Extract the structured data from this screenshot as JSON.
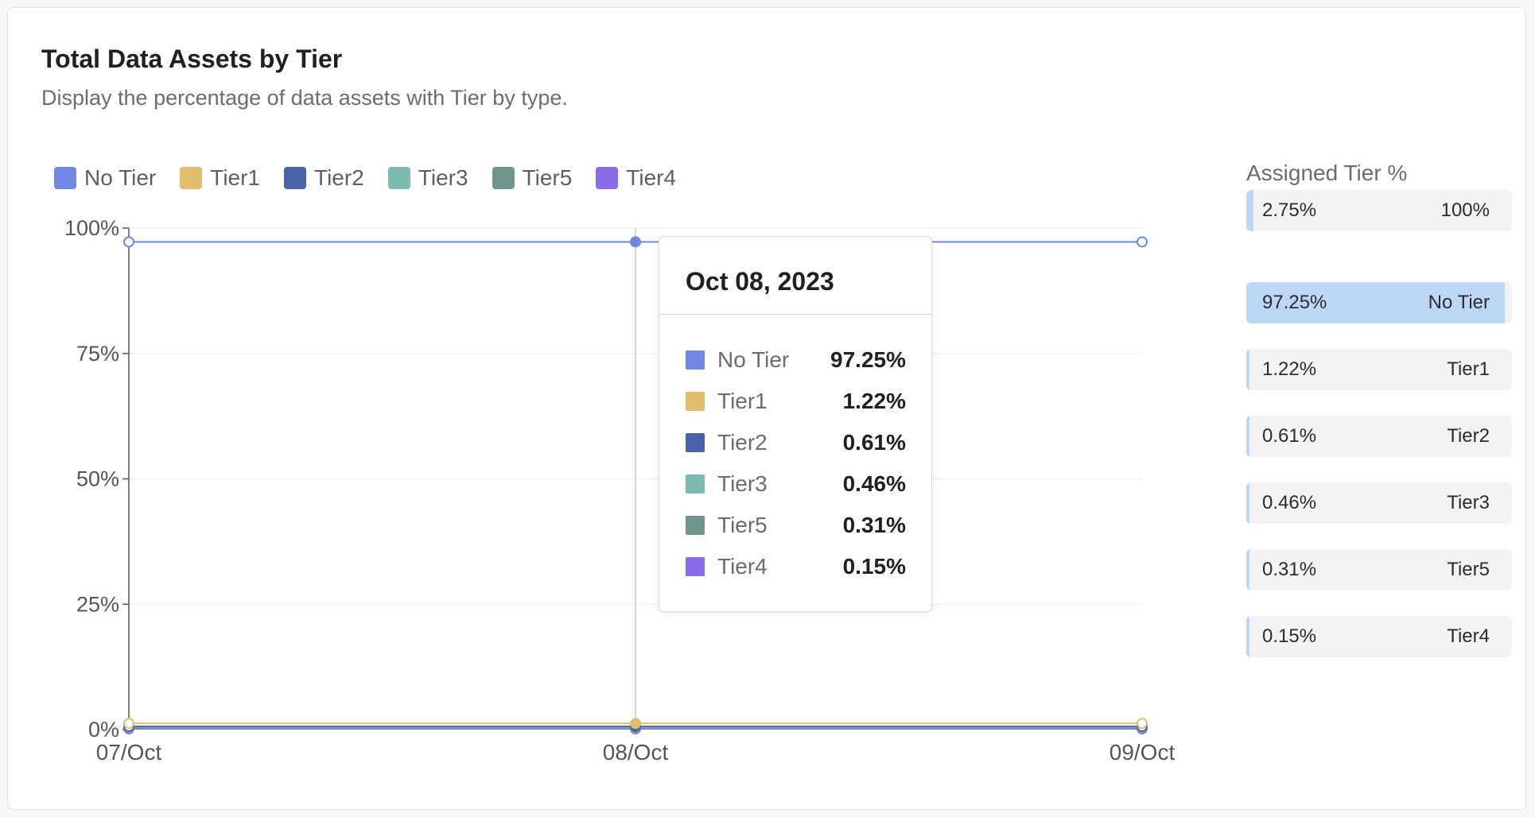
{
  "card": {
    "title": "Total Data Assets by Tier",
    "subtitle": "Display the percentage of data assets with Tier by type."
  },
  "legend": [
    {
      "label": "No Tier",
      "color": "#7286e4"
    },
    {
      "label": "Tier1",
      "color": "#e2bb6c"
    },
    {
      "label": "Tier2",
      "color": "#4a62a8"
    },
    {
      "label": "Tier3",
      "color": "#7dbab0"
    },
    {
      "label": "Tier5",
      "color": "#6f968c"
    },
    {
      "label": "Tier4",
      "color": "#8a6be8"
    }
  ],
  "tooltip": {
    "date": "Oct 08, 2023",
    "rows": [
      {
        "name": "No Tier",
        "value": "97.25%",
        "color": "#7286e4"
      },
      {
        "name": "Tier1",
        "value": "1.22%",
        "color": "#e2bb6c"
      },
      {
        "name": "Tier2",
        "value": "0.61%",
        "color": "#4a62a8"
      },
      {
        "name": "Tier3",
        "value": "0.46%",
        "color": "#7dbab0"
      },
      {
        "name": "Tier5",
        "value": "0.31%",
        "color": "#6f968c"
      },
      {
        "name": "Tier4",
        "value": "0.15%",
        "color": "#8a6be8"
      }
    ]
  },
  "side_panel": {
    "title": "Assigned Tier %",
    "summary": {
      "left": "2.75%",
      "right": "100%",
      "fill": 0.0275
    },
    "items": [
      {
        "percent": "97.25%",
        "name": "No Tier",
        "fill": 0.9725
      },
      {
        "percent": "1.22%",
        "name": "Tier1",
        "fill": 0.0122
      },
      {
        "percent": "0.61%",
        "name": "Tier2",
        "fill": 0.0061
      },
      {
        "percent": "0.46%",
        "name": "Tier3",
        "fill": 0.0046
      },
      {
        "percent": "0.31%",
        "name": "Tier5",
        "fill": 0.0031
      },
      {
        "percent": "0.15%",
        "name": "Tier4",
        "fill": 0.0015
      }
    ]
  },
  "chart_data": {
    "type": "line",
    "x": [
      "07/Oct",
      "08/Oct",
      "09/Oct"
    ],
    "y_ticks": [
      "0%",
      "25%",
      "50%",
      "75%",
      "100%"
    ],
    "ylim": [
      0,
      100
    ],
    "hover_index": 1,
    "series": [
      {
        "name": "No Tier",
        "color": "#7286e4",
        "values": [
          97.25,
          97.25,
          97.25
        ]
      },
      {
        "name": "Tier1",
        "color": "#e2bb6c",
        "values": [
          1.22,
          1.22,
          1.22
        ]
      },
      {
        "name": "Tier2",
        "color": "#4a62a8",
        "values": [
          0.61,
          0.61,
          0.61
        ]
      },
      {
        "name": "Tier3",
        "color": "#7dbab0",
        "values": [
          0.46,
          0.46,
          0.46
        ]
      },
      {
        "name": "Tier5",
        "color": "#6f968c",
        "values": [
          0.31,
          0.31,
          0.31
        ]
      },
      {
        "name": "Tier4",
        "color": "#8a6be8",
        "values": [
          0.15,
          0.15,
          0.15
        ]
      }
    ]
  }
}
